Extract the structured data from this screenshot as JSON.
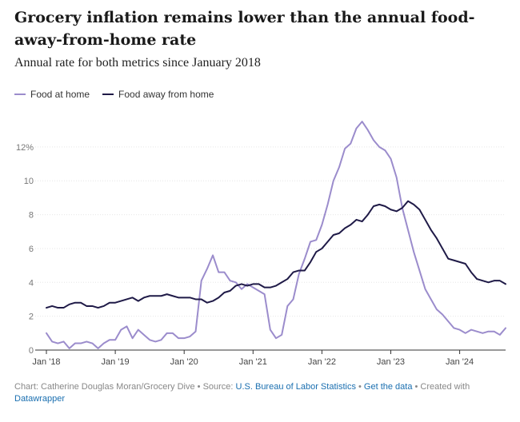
{
  "title": "Grocery inflation remains lower than the annual food-away-from-home rate",
  "subtitle": "Annual rate for both metrics since January 2018",
  "footer": {
    "credit": "Chart: Catherine Douglas Moran/Grocery Dive",
    "sep1": " • ",
    "source_label": "Source: ",
    "source_link": "U.S. Bureau of Labor Statistics",
    "sep2": " • ",
    "data_link": "Get the data",
    "created": " • Created with ",
    "dw_link": "Datawrapper"
  },
  "colors": {
    "food_at_home": "#9b8ccc",
    "food_away": "#1f1a47",
    "grid": "#e6e6e6",
    "axis": "#666666"
  },
  "chart_data": {
    "type": "line",
    "ylim": [
      0,
      13.6
    ],
    "y_ticks": [
      0,
      2,
      4,
      6,
      8,
      10,
      12
    ],
    "y_tick_labels": [
      "0",
      "2",
      "4",
      "6",
      "8",
      "10",
      "12%"
    ],
    "x_ticks": [
      "Jan '18",
      "Jan '19",
      "Jan '20",
      "Jan '21",
      "Jan '22",
      "Jan '23",
      "Jan '24"
    ],
    "x": [
      "2018-01",
      "2018-02",
      "2018-03",
      "2018-04",
      "2018-05",
      "2018-06",
      "2018-07",
      "2018-08",
      "2018-09",
      "2018-10",
      "2018-11",
      "2018-12",
      "2019-01",
      "2019-02",
      "2019-03",
      "2019-04",
      "2019-05",
      "2019-06",
      "2019-07",
      "2019-08",
      "2019-09",
      "2019-10",
      "2019-11",
      "2019-12",
      "2020-01",
      "2020-02",
      "2020-03",
      "2020-04",
      "2020-05",
      "2020-06",
      "2020-07",
      "2020-08",
      "2020-09",
      "2020-10",
      "2020-11",
      "2020-12",
      "2021-01",
      "2021-02",
      "2021-03",
      "2021-04",
      "2021-05",
      "2021-06",
      "2021-07",
      "2021-08",
      "2021-09",
      "2021-10",
      "2021-11",
      "2021-12",
      "2022-01",
      "2022-02",
      "2022-03",
      "2022-04",
      "2022-05",
      "2022-06",
      "2022-07",
      "2022-08",
      "2022-09",
      "2022-10",
      "2022-11",
      "2022-12",
      "2023-01",
      "2023-02",
      "2023-03",
      "2023-04",
      "2023-05",
      "2023-06",
      "2023-07",
      "2023-08",
      "2023-09",
      "2023-10",
      "2023-11",
      "2023-12",
      "2024-01",
      "2024-02",
      "2024-03",
      "2024-04",
      "2024-05",
      "2024-06",
      "2024-07",
      "2024-08",
      "2024-09"
    ],
    "series": [
      {
        "name": "Food at home",
        "values": [
          1.0,
          0.5,
          0.4,
          0.5,
          0.1,
          0.4,
          0.4,
          0.5,
          0.4,
          0.1,
          0.4,
          0.6,
          0.6,
          1.2,
          1.4,
          0.7,
          1.2,
          0.9,
          0.6,
          0.5,
          0.6,
          1.0,
          1.0,
          0.7,
          0.7,
          0.8,
          1.1,
          4.1,
          4.8,
          5.6,
          4.6,
          4.6,
          4.1,
          4.0,
          3.6,
          3.9,
          3.7,
          3.5,
          3.3,
          1.2,
          0.7,
          0.9,
          2.6,
          3.0,
          4.5,
          5.4,
          6.4,
          6.5,
          7.4,
          8.6,
          10.0,
          10.8,
          11.9,
          12.2,
          13.1,
          13.5,
          13.0,
          12.4,
          12.0,
          11.8,
          11.3,
          10.2,
          8.4,
          7.1,
          5.8,
          4.7,
          3.6,
          3.0,
          2.4,
          2.1,
          1.7,
          1.3,
          1.2,
          1.0,
          1.2,
          1.1,
          1.0,
          1.1,
          1.1,
          0.9,
          1.3
        ]
      },
      {
        "name": "Food away from home",
        "values": [
          2.5,
          2.6,
          2.5,
          2.5,
          2.7,
          2.8,
          2.8,
          2.6,
          2.6,
          2.5,
          2.6,
          2.8,
          2.8,
          2.9,
          3.0,
          3.1,
          2.9,
          3.1,
          3.2,
          3.2,
          3.2,
          3.3,
          3.2,
          3.1,
          3.1,
          3.1,
          3.0,
          3.0,
          2.8,
          2.9,
          3.1,
          3.4,
          3.5,
          3.8,
          3.9,
          3.8,
          3.9,
          3.9,
          3.7,
          3.7,
          3.8,
          4.0,
          4.2,
          4.6,
          4.7,
          4.7,
          5.2,
          5.8,
          6.0,
          6.4,
          6.8,
          6.9,
          7.2,
          7.4,
          7.7,
          7.6,
          8.0,
          8.5,
          8.6,
          8.5,
          8.3,
          8.2,
          8.4,
          8.8,
          8.6,
          8.3,
          7.7,
          7.1,
          6.6,
          6.0,
          5.4,
          5.3,
          5.2,
          5.1,
          4.6,
          4.2,
          4.1,
          4.0,
          4.1,
          4.1,
          3.9
        ]
      }
    ]
  }
}
